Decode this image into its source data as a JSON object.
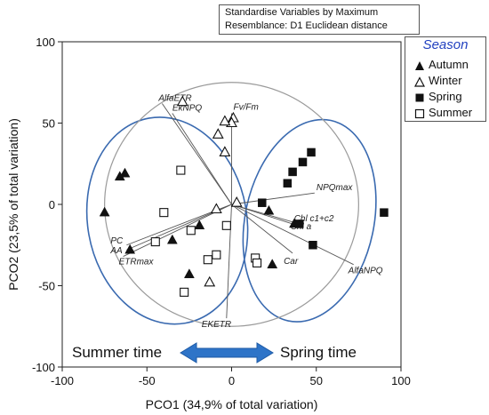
{
  "info_lines": [
    "Standardise Variables by Maximum",
    "Resemblance: D1 Euclidean distance"
  ],
  "legend": {
    "title": "Season",
    "items": [
      {
        "label": "Autumn",
        "marker": "filled-triangle"
      },
      {
        "label": "Winter",
        "marker": "open-triangle"
      },
      {
        "label": "Spring",
        "marker": "filled-square"
      },
      {
        "label": "Summer",
        "marker": "open-square"
      }
    ]
  },
  "captions": {
    "left": "Summer time",
    "right": "Spring time"
  },
  "colors": {
    "ellipse": "#3a6ab0",
    "circle": "#9a9a9a",
    "arrow": "#2e74c8",
    "legend_title": "#1f3fbf"
  },
  "chart_data": {
    "type": "scatter",
    "xlabel": "PCO1 (34,9% of total variation)",
    "ylabel": "PCO2 (23,5% of total variation)",
    "xlim": [
      -100,
      100
    ],
    "ylim": [
      -100,
      100
    ],
    "x_ticks": [
      -100,
      -50,
      0,
      50,
      100
    ],
    "y_ticks": [
      -100,
      -50,
      0,
      50,
      100
    ],
    "series": [
      {
        "name": "Autumn",
        "marker": "filled-triangle",
        "points": [
          [
            -63,
            19
          ],
          [
            -66,
            17
          ],
          [
            -75,
            -5
          ],
          [
            -60,
            -28
          ],
          [
            -35,
            -22
          ],
          [
            -25,
            -43
          ],
          [
            -19,
            -13
          ],
          [
            22,
            -4
          ],
          [
            37,
            -12
          ],
          [
            24,
            -37
          ]
        ]
      },
      {
        "name": "Winter",
        "marker": "open-triangle",
        "points": [
          [
            -29,
            63
          ],
          [
            1,
            53
          ],
          [
            0,
            50
          ],
          [
            -4,
            51
          ],
          [
            -8,
            43
          ],
          [
            -4,
            32
          ],
          [
            3,
            1
          ],
          [
            -9,
            -3
          ],
          [
            -13,
            -48
          ]
        ]
      },
      {
        "name": "Spring",
        "marker": "filled-square",
        "points": [
          [
            47,
            32
          ],
          [
            42,
            26
          ],
          [
            36,
            20
          ],
          [
            33,
            13
          ],
          [
            18,
            1
          ],
          [
            40,
            -12
          ],
          [
            48,
            -25
          ],
          [
            90,
            -5
          ]
        ]
      },
      {
        "name": "Summer",
        "marker": "open-square",
        "points": [
          [
            -30,
            21
          ],
          [
            -40,
            -5
          ],
          [
            -24,
            -16
          ],
          [
            -45,
            -23
          ],
          [
            -3,
            -13
          ],
          [
            -9,
            -31
          ],
          [
            -14,
            -34
          ],
          [
            14,
            -33
          ],
          [
            15,
            -36
          ],
          [
            -28,
            -54
          ]
        ]
      }
    ],
    "vectors": [
      {
        "label": "Fv/Fm",
        "x": 0,
        "y": 56
      },
      {
        "label": "AlfaETR",
        "x": -41,
        "y": 62
      },
      {
        "label": "EkNPQ",
        "x": -35,
        "y": 56
      },
      {
        "label": "NPQmax",
        "x": 49,
        "y": 7
      },
      {
        "label": "Chl c1+c2",
        "x": 40,
        "y": -12
      },
      {
        "label": "Chl a",
        "x": 39,
        "y": -13
      },
      {
        "label": "Car",
        "x": 36,
        "y": -30
      },
      {
        "label": "AlfaNPQ",
        "x": 72,
        "y": -37
      },
      {
        "label": "PC",
        "x": -62,
        "y": -25
      },
      {
        "label": "AA",
        "x": -62,
        "y": -28
      },
      {
        "label": "ETRmax",
        "x": -64,
        "y": -32
      },
      {
        "label": "EKETR",
        "x": -3,
        "y": -70
      }
    ],
    "vector_circle_radius": 75,
    "ellipses": [
      {
        "group": "Summer time",
        "center": [
          -38,
          -10
        ],
        "rx": 47,
        "ry": 64,
        "rotation_deg": -10
      },
      {
        "group": "Spring time",
        "center": [
          46,
          -10
        ],
        "rx": 38,
        "ry": 63,
        "rotation_deg": 12
      }
    ],
    "grid": false,
    "legend_position": "top-right"
  }
}
